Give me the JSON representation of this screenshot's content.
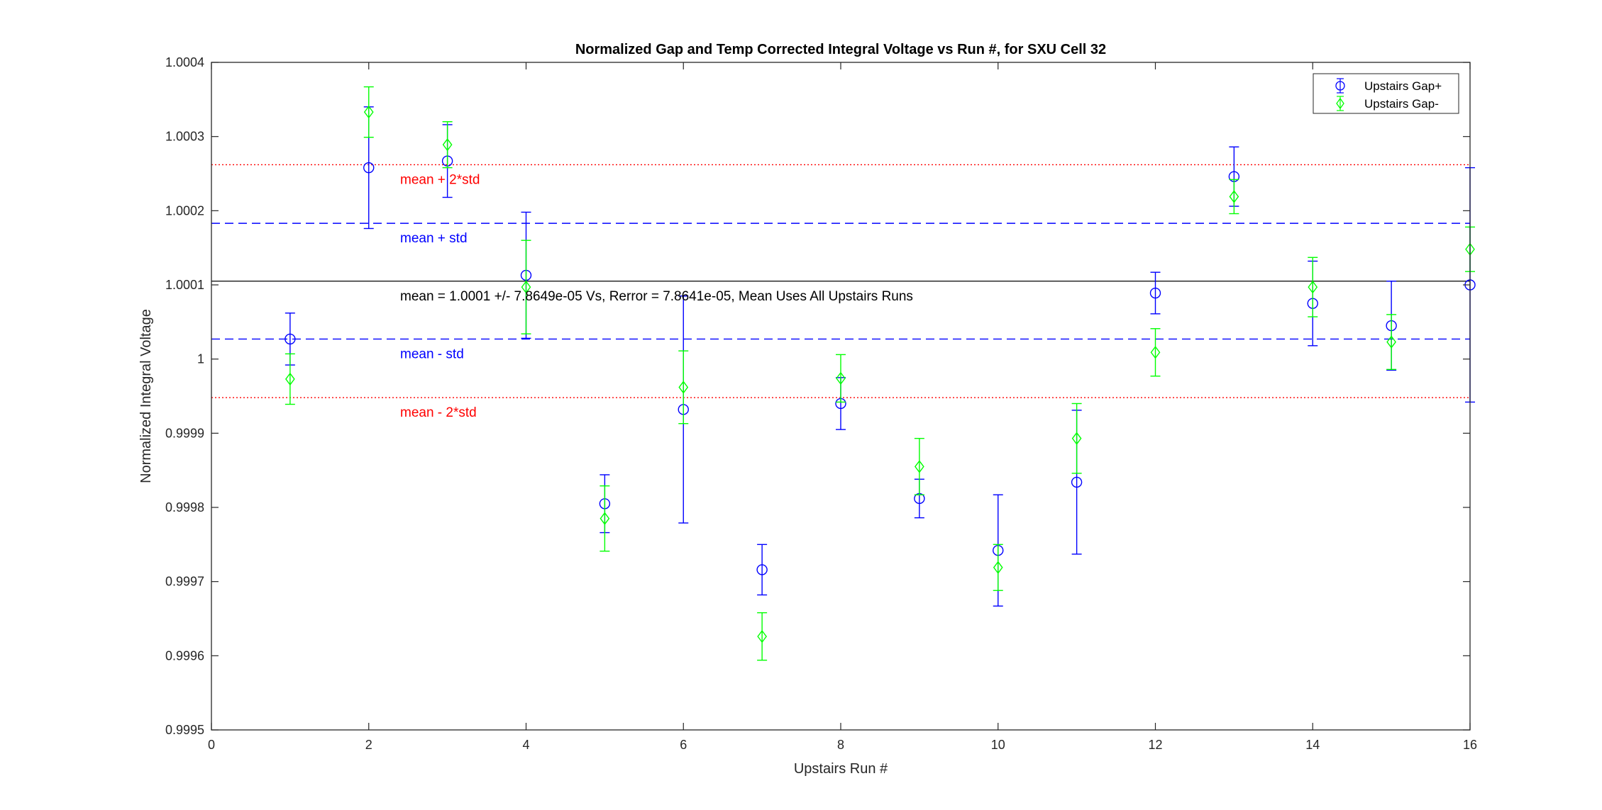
{
  "chart_data": {
    "type": "scatter",
    "title": "Normalized Gap and Temp Corrected Integral Voltage vs Run #, for SXU Cell 32",
    "xlabel": "Upstairs Run #",
    "ylabel": "Normalized Integral Voltage",
    "xlim": [
      0,
      16
    ],
    "ylim": [
      0.9995,
      1.0004
    ],
    "xticks": [
      0,
      2,
      4,
      6,
      8,
      10,
      12,
      14,
      16
    ],
    "yticks": [
      0.9995,
      0.9996,
      0.9997,
      0.9998,
      0.9999,
      1.0,
      1.0001,
      1.0002,
      1.0003,
      1.0004
    ],
    "ytick_labels": [
      "0.9995",
      "0.9996",
      "0.9997",
      "0.9998",
      "0.9999",
      "1",
      "1.0001",
      "1.0002",
      "1.0003",
      "1.0004"
    ],
    "legend_position": "top-right",
    "grid": false,
    "series": [
      {
        "name": "Upstairs Gap+",
        "color": "#0000ff",
        "marker": "circle",
        "x": [
          1,
          2,
          3,
          4,
          5,
          6,
          7,
          8,
          9,
          10,
          11,
          12,
          13,
          14,
          15,
          16
        ],
        "y": [
          1.000027,
          1.000258,
          1.000267,
          1.000113,
          0.999805,
          0.999932,
          0.999716,
          0.99994,
          0.999812,
          0.999742,
          0.999834,
          1.000089,
          1.000246,
          1.000075,
          1.000045,
          1.0001
        ],
        "err": [
          3.5e-05,
          8.2e-05,
          4.9e-05,
          8.5e-05,
          3.9e-05,
          0.000153,
          3.4e-05,
          3.5e-05,
          2.6e-05,
          7.5e-05,
          9.7e-05,
          2.8e-05,
          4e-05,
          5.7e-05,
          6e-05,
          0.000158
        ]
      },
      {
        "name": "Upstairs Gap-",
        "color": "#00ff00",
        "marker": "diamond",
        "x": [
          1,
          2,
          3,
          4,
          5,
          6,
          7,
          8,
          9,
          10,
          11,
          12,
          13,
          14,
          15,
          16
        ],
        "y": [
          0.999973,
          1.000333,
          1.000289,
          1.000097,
          0.999785,
          0.999962,
          0.999626,
          0.999974,
          0.999855,
          0.999719,
          0.999893,
          1.000009,
          1.000219,
          1.000097,
          1.000023,
          1.000148
        ],
        "err": [
          3.4e-05,
          3.4e-05,
          3.1e-05,
          6.3e-05,
          4.4e-05,
          4.9e-05,
          3.2e-05,
          3.2e-05,
          3.8e-05,
          3.1e-05,
          4.7e-05,
          3.2e-05,
          2.3e-05,
          4e-05,
          3.7e-05,
          3e-05
        ]
      }
    ],
    "reference_lines": [
      {
        "label": "mean + 2*std",
        "y": 1.000262,
        "color": "#ff0000",
        "style": "dotted"
      },
      {
        "label": "mean + std",
        "y": 1.000183,
        "color": "#0000ff",
        "style": "dashed"
      },
      {
        "label": "",
        "y": 1.000105,
        "color": "#000000",
        "style": "solid"
      },
      {
        "label": "mean - std",
        "y": 1.000027,
        "color": "#0000ff",
        "style": "dashed"
      },
      {
        "label": "mean - 2*std",
        "y": 0.999948,
        "color": "#ff0000",
        "style": "dotted"
      }
    ],
    "annotation": "mean = 1.0001 +/- 7.8649e-05 Vs, Rerror = 7.8641e-05, Mean Uses All Upstairs Runs"
  }
}
